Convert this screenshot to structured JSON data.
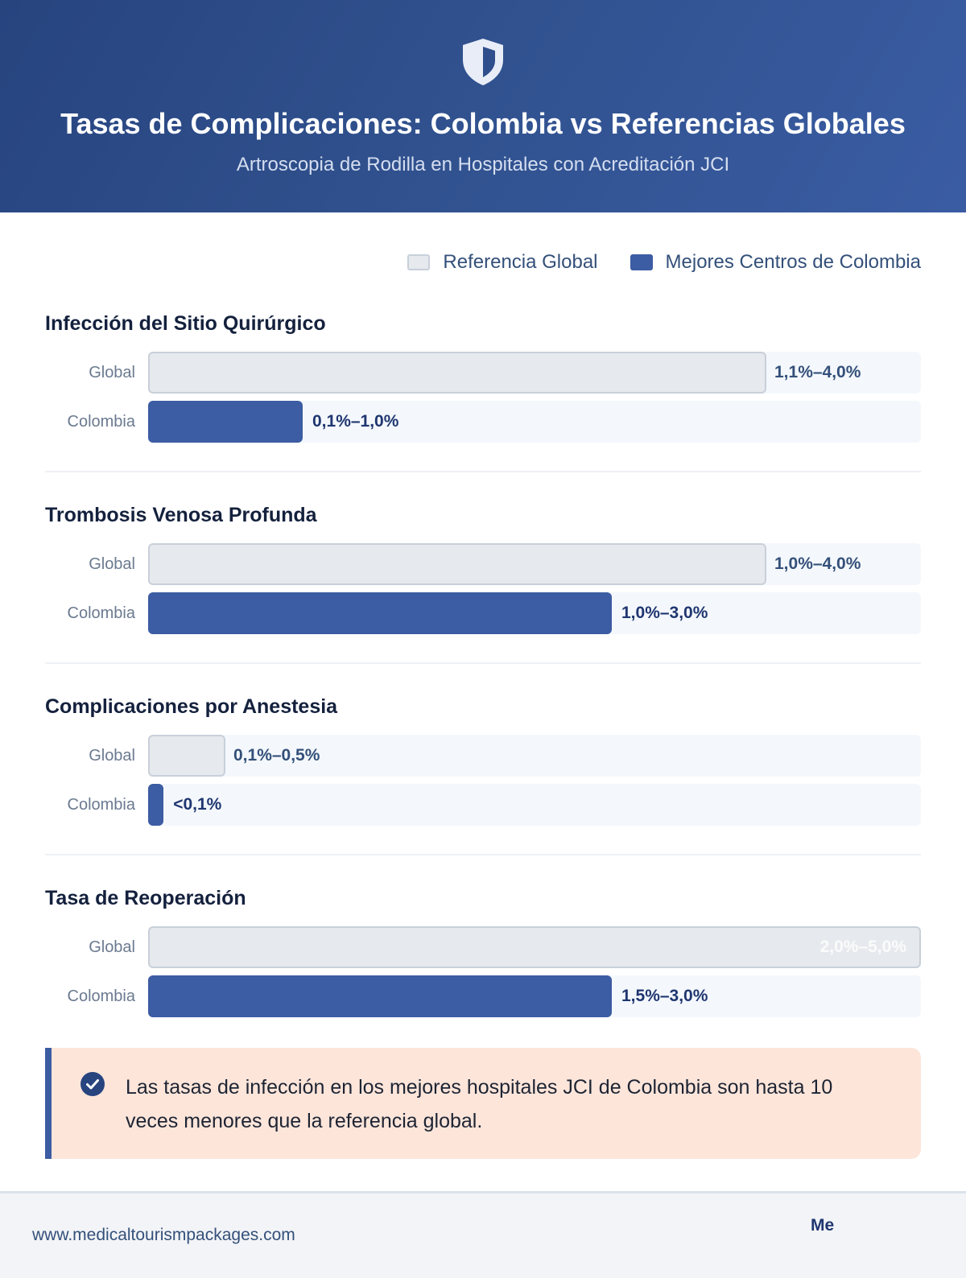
{
  "header": {
    "icon": "shield-icon",
    "title": "Tasas de Complicaciones: Colombia vs Referencias Globales",
    "subtitle": "Artroscopia de Rodilla en Hospitales con Acreditación JCI"
  },
  "legend": {
    "global": "Referencia Global",
    "colombia": "Mejores Centros de Colombia"
  },
  "colors": {
    "global": "#e6e9ed",
    "colombia": "#3c5ca3",
    "header": "#2f4e8c",
    "callout": "#fde5da"
  },
  "chart_data": {
    "type": "bar",
    "orientation": "horizontal",
    "unit": "%",
    "xlim": [
      0,
      5
    ],
    "series_names": [
      "Referencia Global",
      "Mejores Centros de Colombia"
    ],
    "row_labels": {
      "global": "Global",
      "colombia": "Colombia"
    },
    "categories": [
      {
        "title": "Infección del Sitio Quirúrgico",
        "global": {
          "label": "1,1%–4,0%",
          "range": [
            1.1,
            4.0
          ]
        },
        "colombia": {
          "label": "0,1%–1,0%",
          "range": [
            0.1,
            1.0
          ]
        }
      },
      {
        "title": "Trombosis Venosa Profunda",
        "global": {
          "label": "1,0%–4,0%",
          "range": [
            1.0,
            4.0
          ]
        },
        "colombia": {
          "label": "1,0%–3,0%",
          "range": [
            1.0,
            3.0
          ]
        }
      },
      {
        "title": "Complicaciones por Anestesia",
        "global": {
          "label": "0,1%–0,5%",
          "range": [
            0.1,
            0.5
          ]
        },
        "colombia": {
          "label": "<0,1%",
          "range": [
            0,
            0.1
          ]
        }
      },
      {
        "title": "Tasa de Reoperación",
        "global": {
          "label": "2,0%–5,0%",
          "range": [
            2.0,
            5.0
          ]
        },
        "colombia": {
          "label": "1,5%–3,0%",
          "range": [
            1.5,
            3.0
          ]
        }
      }
    ]
  },
  "callout": {
    "icon": "check-circle-icon",
    "text": "Las tasas de infección en los mejores hospitales JCI de Colombia son hasta 10 veces menores que la referencia global."
  },
  "footer": {
    "url": "www.medicaltourismpackages.com",
    "brand": "Me"
  }
}
